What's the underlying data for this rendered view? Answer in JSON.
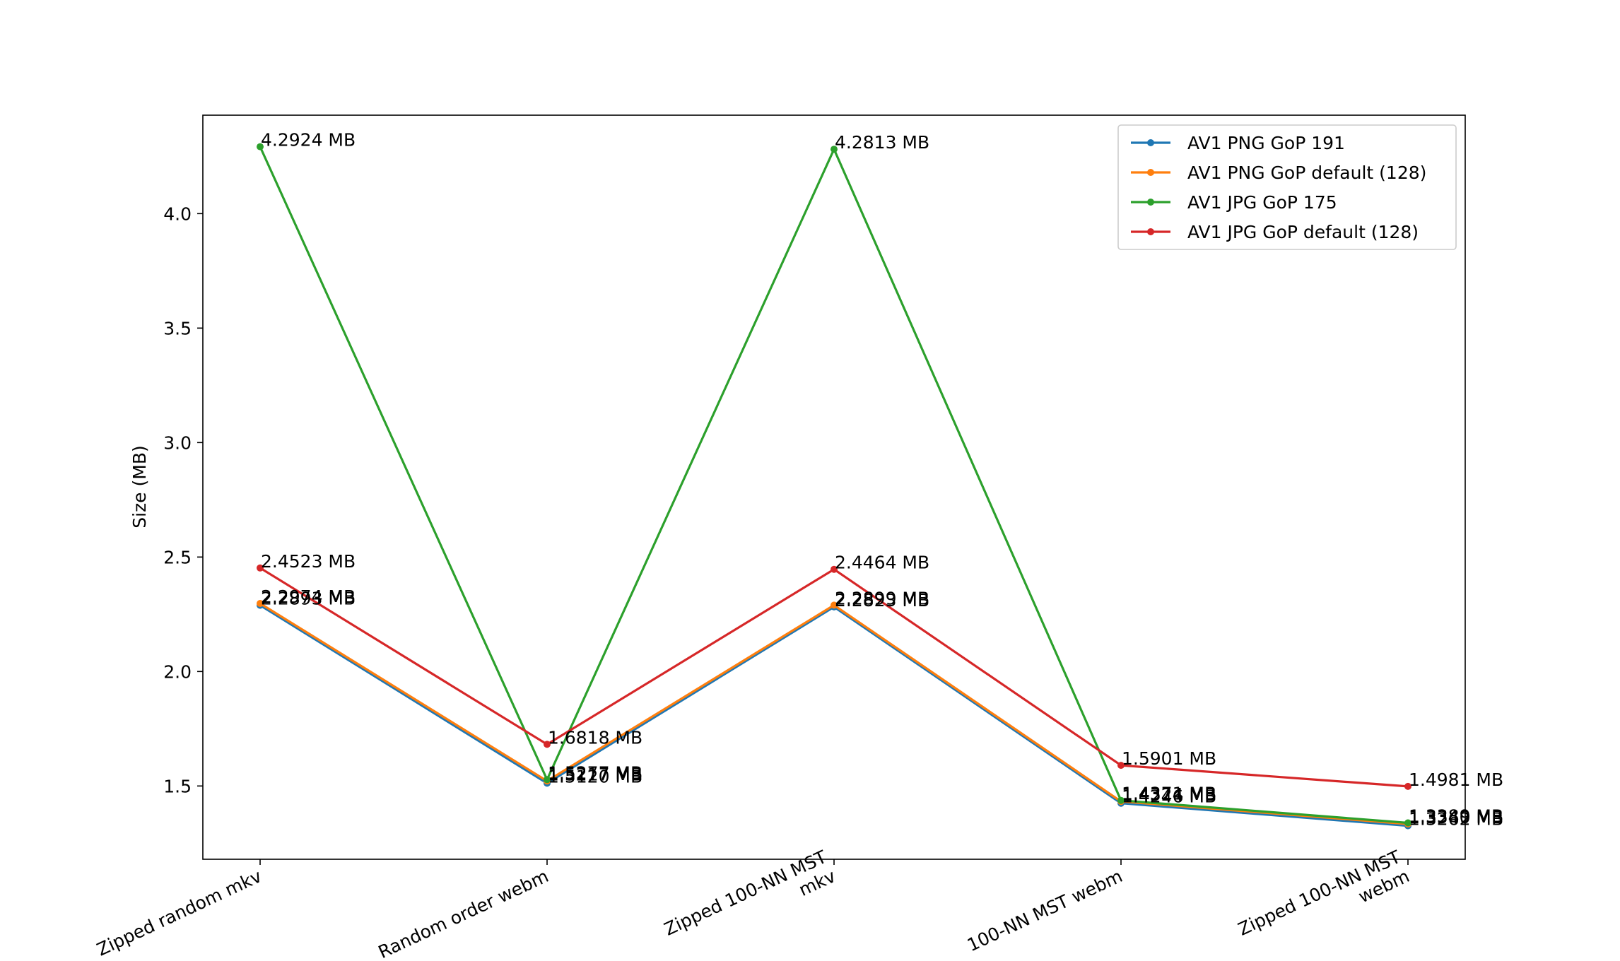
{
  "chart_data": {
    "type": "line",
    "title": "",
    "xlabel": "",
    "ylabel": "Size (MB)",
    "categories": [
      [
        "Zipped random mkv"
      ],
      [
        "Random order webm"
      ],
      [
        "Zipped 100-NN MST",
        "mkv"
      ],
      [
        "100-NN MST webm"
      ],
      [
        "Zipped 100-NN MST",
        "webm"
      ]
    ],
    "ylim": [
      1.18,
      4.43
    ],
    "yticks": [
      1.5,
      2.0,
      2.5,
      3.0,
      3.5,
      4.0
    ],
    "ytick_labels": [
      "1.5",
      "2.0",
      "2.5",
      "3.0",
      "3.5",
      "4.0"
    ],
    "grid": false,
    "legend_position": "top-right",
    "series": [
      {
        "name": "AV1 PNG GoP 191",
        "color": "#1f77b4",
        "values": [
          2.2893,
          1.512,
          2.2823,
          1.4246,
          1.3262
        ],
        "labels": [
          "2.2893 MB",
          "1.5120 MB",
          "2.2823 MB",
          "1.4246 MB",
          "1.3262 MB"
        ]
      },
      {
        "name": "AV1 PNG GoP default (128)",
        "color": "#ff7f0e",
        "values": [
          2.2974,
          1.5217,
          2.2899,
          1.4324,
          1.334
        ],
        "labels": [
          "2.2974 MB",
          "1.5217 MB",
          "2.2899 MB",
          "1.4324 MB",
          "1.3340 MB"
        ]
      },
      {
        "name": "AV1 JPG GoP 175",
        "color": "#2ca02c",
        "values": [
          4.2924,
          1.5277,
          4.2813,
          1.4371,
          1.3389
        ],
        "labels": [
          "4.2924 MB",
          "1.5277 MB",
          "4.2813 MB",
          "1.4371 MB",
          "1.3389 MB"
        ]
      },
      {
        "name": "AV1 JPG GoP default (128)",
        "color": "#d62728",
        "values": [
          2.4523,
          1.6818,
          2.4464,
          1.5901,
          1.4981
        ],
        "labels": [
          "2.4523 MB",
          "1.6818 MB",
          "2.4464 MB",
          "1.5901 MB",
          "1.4981 MB"
        ]
      }
    ]
  }
}
